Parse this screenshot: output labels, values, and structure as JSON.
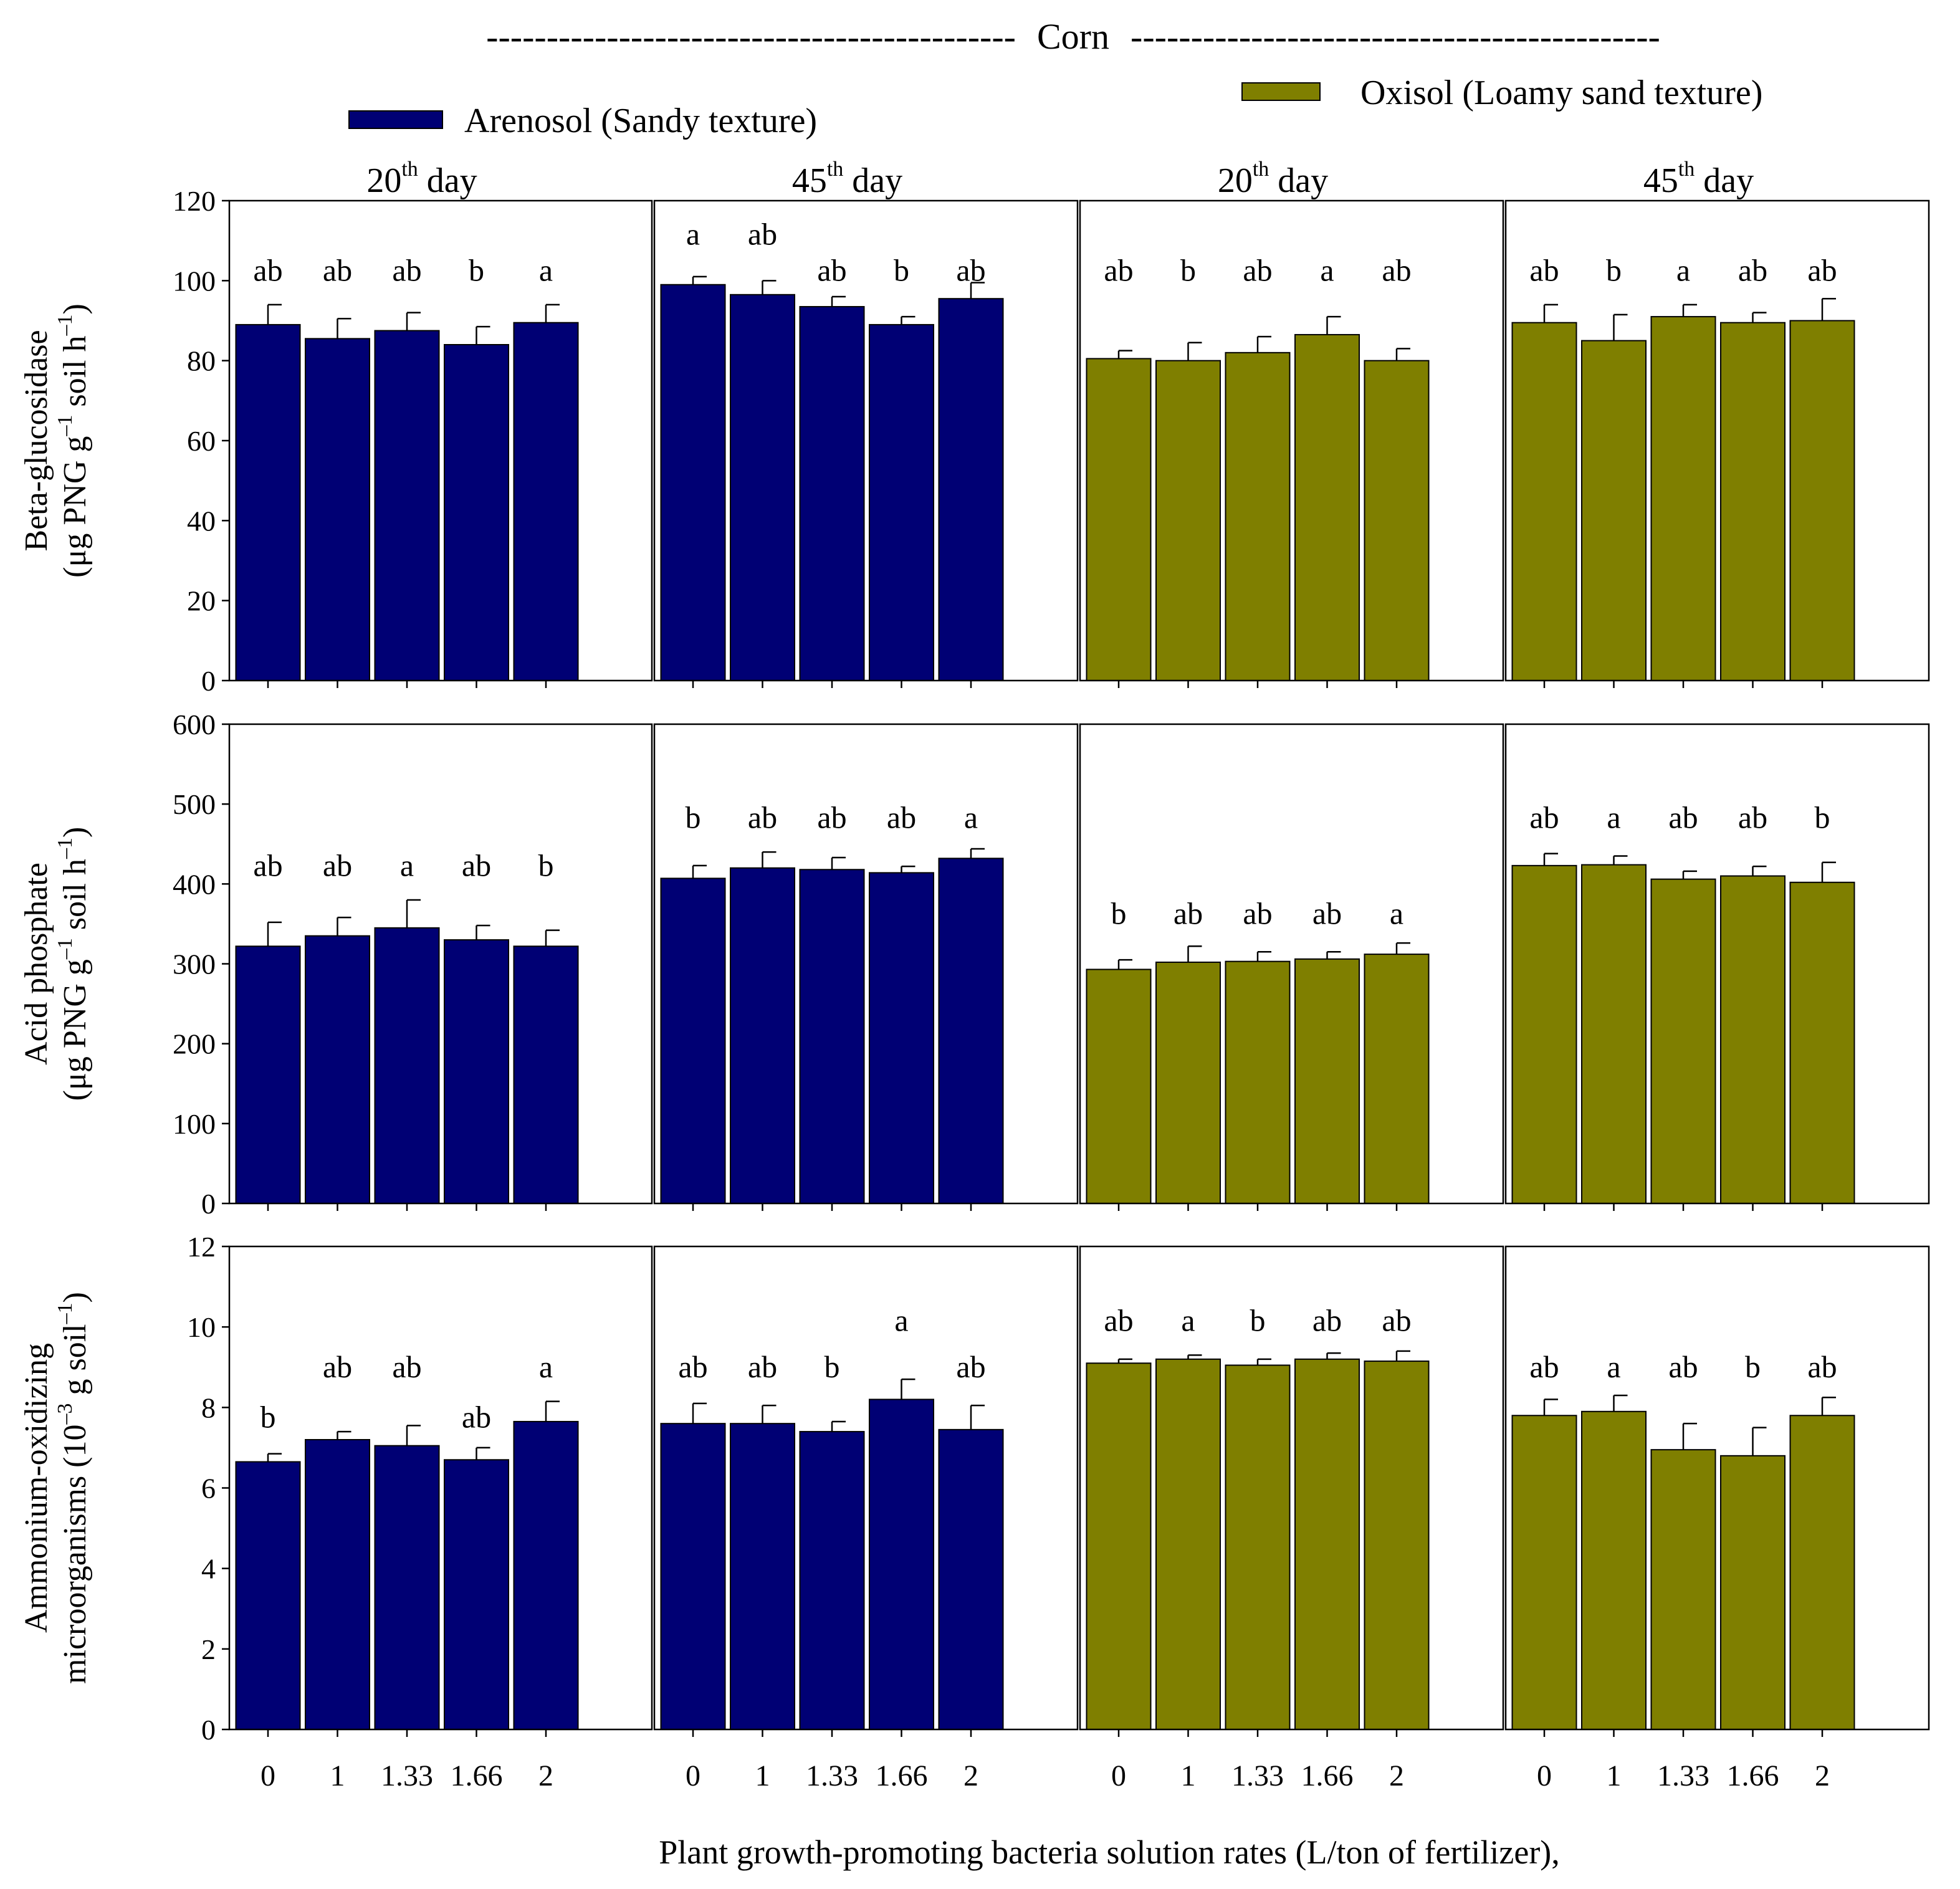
{
  "colors": {
    "arenosol": "#000074",
    "oxisol": "#7f7f00"
  },
  "chart_data": {
    "type": "bar",
    "title": "Corn",
    "title_dashes": "--------------------------------------------",
    "xlabel": "Plant growth-promoting bacteria solution rates (L/ton of fertilizer),",
    "categories": [
      "0",
      "1",
      "1.33",
      "1.66",
      "2"
    ],
    "legend": [
      {
        "label": "Arenosol (Sandy texture)",
        "color_key": "arenosol"
      },
      {
        "label": "Oxisol (Loamy sand texture)",
        "color_key": "oxisol"
      }
    ],
    "panel_headers": [
      {
        "num": "20",
        "sup": "th",
        "rest": "day"
      },
      {
        "num": "45",
        "sup": "th",
        "rest": "day"
      },
      {
        "num": "20",
        "sup": "th",
        "rest": "day"
      },
      {
        "num": "45",
        "sup": "th",
        "rest": "day"
      }
    ],
    "panel_soils": [
      "arenosol",
      "arenosol",
      "oxisol",
      "oxisol"
    ],
    "rows": [
      {
        "name": "beta-glucosidase",
        "ylabel_line1": "Beta-glucosidase",
        "ylabel_line2": "(μg PNG g",
        "ylabel_sup1": "–1",
        "ylabel_mid": " soil h",
        "ylabel_sup2": "–1",
        "ylabel_end": ")",
        "ylim": [
          0,
          120
        ],
        "yticks": [
          "0",
          "20",
          "40",
          "60",
          "80",
          "100",
          "120"
        ],
        "panels": [
          {
            "values": [
              89,
              85.5,
              87.5,
              84,
              89.5
            ],
            "errors": [
              5,
              5,
              4.5,
              4.5,
              4.5
            ],
            "letters": [
              "ab",
              "ab",
              "ab",
              "b",
              "a"
            ],
            "letter_values": [
              100,
              100,
              100,
              100,
              100
            ]
          },
          {
            "values": [
              99,
              96.5,
              93.5,
              89,
              95.5
            ],
            "errors": [
              2,
              3.5,
              2.5,
              2,
              4
            ],
            "letters": [
              "a",
              "ab",
              "ab",
              "b",
              "ab"
            ],
            "letter_values": [
              109,
              109,
              100,
              100,
              100
            ]
          },
          {
            "values": [
              80.5,
              80,
              82,
              86.5,
              80
            ],
            "errors": [
              2,
              4.5,
              4,
              4.5,
              3
            ],
            "letters": [
              "ab",
              "b",
              "ab",
              "a",
              "ab"
            ],
            "letter_values": [
              100,
              100,
              100,
              100,
              100
            ]
          },
          {
            "values": [
              89.5,
              85,
              91,
              89.5,
              90
            ],
            "errors": [
              4.5,
              6.5,
              3,
              2.5,
              5.5
            ],
            "letters": [
              "ab",
              "b",
              "a",
              "ab",
              "ab"
            ],
            "letter_values": [
              100,
              100,
              100,
              100,
              100
            ]
          }
        ]
      },
      {
        "name": "acid-phosphate",
        "ylabel_line1": "Acid phosphate",
        "ylabel_line2": "(μg PNG g",
        "ylabel_sup1": "–1",
        "ylabel_mid": " soil h",
        "ylabel_sup2": "–1",
        "ylabel_end": ")",
        "ylim": [
          0,
          600
        ],
        "yticks": [
          "0",
          "100",
          "200",
          "300",
          "400",
          "500",
          "600"
        ],
        "panels": [
          {
            "values": [
              322,
              335,
              345,
              330,
              322
            ],
            "errors": [
              30,
              23,
              35,
              18,
              20
            ],
            "letters": [
              "ab",
              "ab",
              "a",
              "ab",
              "b"
            ],
            "letter_values": [
              410,
              410,
              410,
              410,
              410
            ]
          },
          {
            "values": [
              407,
              420,
              418,
              414,
              432
            ],
            "errors": [
              16,
              20,
              15,
              8,
              12
            ],
            "letters": [
              "b",
              "ab",
              "ab",
              "ab",
              "a"
            ],
            "letter_values": [
              470,
              470,
              470,
              470,
              470
            ]
          },
          {
            "values": [
              293,
              302,
              303,
              306,
              312
            ],
            "errors": [
              12,
              20,
              12,
              9,
              14
            ],
            "letters": [
              "b",
              "ab",
              "ab",
              "ab",
              "a"
            ],
            "letter_values": [
              350,
              350,
              350,
              350,
              350
            ]
          },
          {
            "values": [
              423,
              424,
              406,
              410,
              402
            ],
            "errors": [
              15,
              11,
              10,
              12,
              25
            ],
            "letters": [
              "ab",
              "a",
              "ab",
              "ab",
              "b"
            ],
            "letter_values": [
              470,
              470,
              470,
              470,
              470
            ]
          }
        ]
      },
      {
        "name": "ammonium-oxidizing",
        "ylabel_line1": "Ammonium-oxidizing",
        "ylabel_line2": "microorganisms (10",
        "ylabel_sup1": "–3",
        "ylabel_mid": " g soil",
        "ylabel_sup2": "–1",
        "ylabel_end": ")",
        "ylim": [
          0,
          12
        ],
        "yticks": [
          "0",
          "2",
          "4",
          "6",
          "8",
          "10",
          "12"
        ],
        "panels": [
          {
            "values": [
              6.65,
              7.2,
              7.05,
              6.7,
              7.65
            ],
            "errors": [
              0.2,
              0.2,
              0.5,
              0.3,
              0.5
            ],
            "letters": [
              "b",
              "ab",
              "ab",
              "ab",
              "a"
            ],
            "letter_values": [
              7.5,
              8.75,
              8.75,
              7.5,
              8.75
            ]
          },
          {
            "values": [
              7.6,
              7.6,
              7.4,
              8.2,
              7.45
            ],
            "errors": [
              0.5,
              0.45,
              0.25,
              0.5,
              0.6
            ],
            "letters": [
              "ab",
              "ab",
              "b",
              "a",
              "ab"
            ],
            "letter_values": [
              8.75,
              8.75,
              8.75,
              9.9,
              8.75
            ]
          },
          {
            "values": [
              9.1,
              9.2,
              9.05,
              9.2,
              9.15
            ],
            "errors": [
              0.1,
              0.1,
              0.15,
              0.15,
              0.25
            ],
            "letters": [
              "ab",
              "a",
              "b",
              "ab",
              "ab"
            ],
            "letter_values": [
              9.9,
              9.9,
              9.9,
              9.9,
              9.9
            ]
          },
          {
            "values": [
              7.8,
              7.9,
              6.95,
              6.8,
              7.8
            ],
            "errors": [
              0.4,
              0.4,
              0.65,
              0.7,
              0.45
            ],
            "letters": [
              "ab",
              "a",
              "ab",
              "b",
              "ab"
            ],
            "letter_values": [
              8.75,
              8.75,
              8.75,
              8.75,
              8.75
            ]
          }
        ]
      }
    ]
  }
}
